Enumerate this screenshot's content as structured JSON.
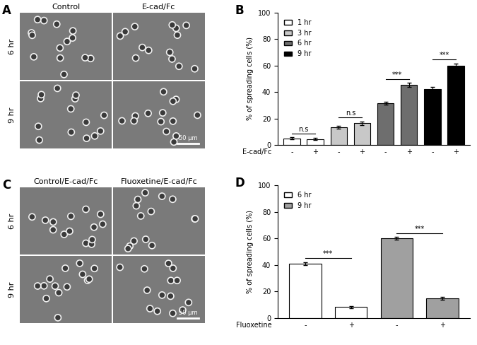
{
  "images": [
    {
      "panel": "A",
      "columns": [
        "Control",
        "E-cad/Fc"
      ],
      "rows": [
        "6 hr",
        "9 hr"
      ],
      "scale_bar": "50 μm"
    },
    {
      "panel": "C",
      "columns": [
        "Control/E-cad/Fc",
        "Fluoxetine/E-cad/Fc"
      ],
      "rows": [
        "6 hr",
        "9 hr"
      ],
      "scale_bar": "50 μm"
    }
  ],
  "chart_data": [
    {
      "panel": "B",
      "type": "bar",
      "ylabel": "% of spreading cells (%)",
      "xlabel": "E-cad/Fc",
      "categories": [
        "-",
        "+",
        "-",
        "+",
        "-",
        "+",
        "-",
        "+"
      ],
      "series": [
        {
          "name": "1 hr",
          "color": "#ffffff",
          "values": [
            5,
            4.5,
            null,
            null,
            null,
            null,
            null,
            null
          ],
          "errors": [
            0.8,
            0.7,
            null,
            null,
            null,
            null,
            null,
            null
          ]
        },
        {
          "name": "3 hr",
          "color": "#c8c8c8",
          "values": [
            null,
            null,
            13.5,
            16.5,
            null,
            null,
            null,
            null
          ],
          "errors": [
            null,
            null,
            1.2,
            1.3,
            null,
            null,
            null,
            null
          ]
        },
        {
          "name": "6 hr",
          "color": "#6e6e6e",
          "values": [
            null,
            null,
            null,
            null,
            31.5,
            45.5,
            null,
            null
          ],
          "errors": [
            null,
            null,
            null,
            null,
            1.2,
            1.5,
            null,
            null
          ]
        },
        {
          "name": "9 hr",
          "color": "#000000",
          "values": [
            null,
            null,
            null,
            null,
            null,
            null,
            42,
            60
          ],
          "errors": [
            null,
            null,
            null,
            null,
            null,
            null,
            2.0,
            1.5
          ]
        }
      ],
      "significance": [
        "n.s",
        "n.s",
        "***",
        "***"
      ],
      "ylim": [
        0,
        100
      ],
      "yticks": [
        0,
        20,
        40,
        60,
        80,
        100
      ],
      "legend": "upper left"
    },
    {
      "panel": "D",
      "type": "bar",
      "ylabel": "% of spreading cells (%)",
      "xlabel": "Fluoxetine",
      "categories": [
        "-",
        "+",
        "-",
        "+"
      ],
      "series": [
        {
          "name": "6 hr",
          "color": "#ffffff",
          "values": [
            41,
            8.5,
            null,
            null
          ],
          "errors": [
            1.0,
            0.8,
            null,
            null
          ]
        },
        {
          "name": "9 hr",
          "color": "#a0a0a0",
          "values": [
            null,
            null,
            60,
            15
          ],
          "errors": [
            null,
            null,
            1.0,
            1.0
          ]
        }
      ],
      "significance": [
        "***",
        "***"
      ],
      "ylim": [
        0,
        100
      ],
      "yticks": [
        0,
        20,
        40,
        60,
        80,
        100
      ],
      "legend": "upper left"
    }
  ]
}
